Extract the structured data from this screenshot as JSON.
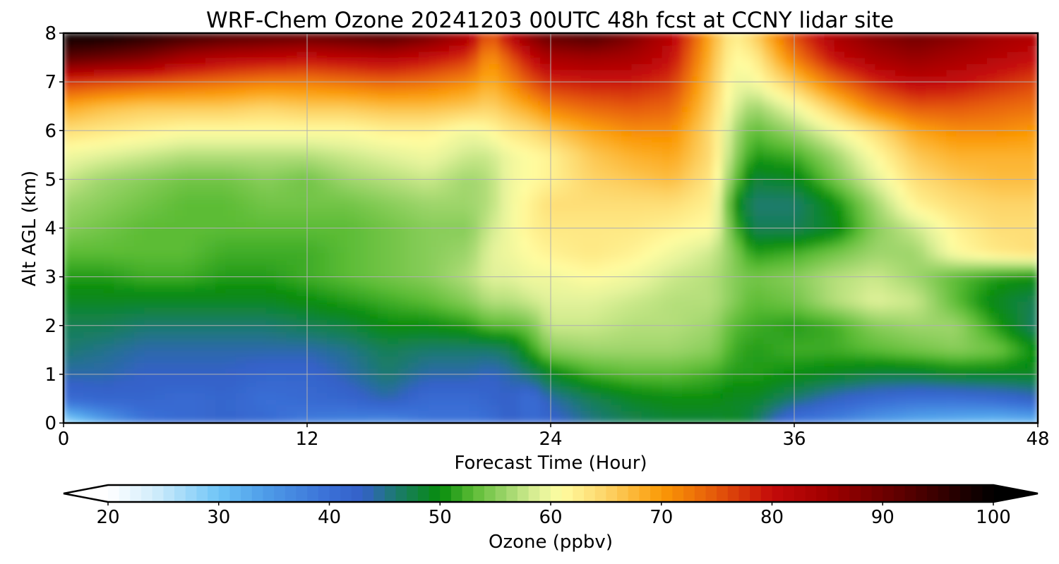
{
  "chart_data": {
    "type": "heatmap",
    "title": "WRF-Chem Ozone  20241203 00UTC 48h fcst at CCNY lidar site",
    "xlabel": "Forecast Time (Hour)",
    "ylabel": "Alt AGL (km)",
    "xlim": [
      0,
      48
    ],
    "ylim": [
      0,
      8
    ],
    "xticks": [
      "0",
      "12",
      "24",
      "36",
      "48"
    ],
    "yticks": [
      "0",
      "1",
      "2",
      "3",
      "4",
      "5",
      "6",
      "7",
      "8"
    ],
    "grid": true,
    "colorbar": {
      "label": "Ozone  (ppbv)",
      "orientation": "horizontal",
      "placement": "bottom",
      "range": [
        20,
        100
      ],
      "ticks": [
        "20",
        "30",
        "40",
        "50",
        "60",
        "70",
        "80",
        "90",
        "100"
      ],
      "extend": "both",
      "colors": [
        {
          "v": 20,
          "c": "#ffffff"
        },
        {
          "v": 24,
          "c": "#d4eefb"
        },
        {
          "v": 30,
          "c": "#6ec5f7"
        },
        {
          "v": 34,
          "c": "#4f9ee9"
        },
        {
          "v": 40,
          "c": "#3a6fd6"
        },
        {
          "v": 43,
          "c": "#3461c8"
        },
        {
          "v": 46,
          "c": "#1c7a6e"
        },
        {
          "v": 50,
          "c": "#068c0c"
        },
        {
          "v": 53,
          "c": "#5cbc35"
        },
        {
          "v": 56,
          "c": "#9ed56b"
        },
        {
          "v": 59,
          "c": "#e2f29a"
        },
        {
          "v": 61,
          "c": "#fffca0"
        },
        {
          "v": 65,
          "c": "#fdd468"
        },
        {
          "v": 70,
          "c": "#fb9a06"
        },
        {
          "v": 75,
          "c": "#e4570a"
        },
        {
          "v": 80,
          "c": "#c40a0a"
        },
        {
          "v": 85,
          "c": "#a00000"
        },
        {
          "v": 92,
          "c": "#5a0000"
        },
        {
          "v": 100,
          "c": "#000000"
        }
      ]
    },
    "x_hours": [
      0,
      2,
      4,
      6,
      8,
      10,
      12,
      14,
      16,
      18,
      20,
      21,
      22,
      23,
      24,
      26,
      28,
      30,
      32,
      33,
      34,
      36,
      38,
      40,
      42,
      44,
      46,
      48
    ],
    "y_km": [
      0,
      0.5,
      1,
      1.5,
      2,
      2.5,
      3,
      3.5,
      4,
      4.5,
      5,
      5.5,
      6,
      6.5,
      7,
      7.5,
      8
    ],
    "ozone_ppbv": [
      [
        26,
        33,
        39,
        41,
        42,
        41,
        38,
        37,
        36,
        39,
        39,
        40,
        43,
        41,
        42,
        45,
        47,
        48,
        48,
        49,
        47,
        39,
        37,
        34,
        32,
        31,
        30,
        31
      ],
      [
        41,
        42,
        42,
        41,
        42,
        40,
        41,
        42,
        44,
        41,
        41,
        42,
        43,
        40,
        44,
        47,
        49,
        50,
        50,
        49,
        49,
        46,
        43,
        41,
        40,
        40,
        41,
        43
      ],
      [
        44,
        44,
        43,
        43,
        43,
        42,
        42,
        44,
        46,
        44,
        44,
        43,
        44,
        46,
        49,
        52,
        53,
        53,
        52,
        51,
        51,
        50,
        49,
        48,
        48,
        49,
        49,
        49
      ],
      [
        46,
        45,
        44,
        44,
        44,
        44,
        44,
        45,
        47,
        46,
        46,
        46,
        47,
        51,
        55,
        56,
        56,
        56,
        55,
        52,
        51,
        52,
        52,
        53,
        54,
        55,
        54,
        50
      ],
      [
        47,
        47,
        46,
        46,
        46,
        46,
        47,
        48,
        50,
        50,
        51,
        53,
        53,
        54,
        58,
        58,
        57,
        57,
        56,
        53,
        52,
        51,
        52,
        55,
        56,
        56,
        51,
        46
      ],
      [
        49,
        49,
        49,
        49,
        49,
        49,
        50,
        51,
        52,
        53,
        55,
        57,
        57,
        58,
        59,
        59,
        58,
        57,
        57,
        55,
        53,
        54,
        57,
        59,
        58,
        53,
        49,
        47
      ],
      [
        51,
        51,
        52,
        52,
        51,
        51,
        52,
        53,
        54,
        55,
        57,
        59,
        59,
        60,
        60,
        61,
        60,
        58,
        57,
        55,
        54,
        55,
        57,
        58,
        56,
        53,
        51,
        50
      ],
      [
        53,
        53,
        53,
        53,
        52,
        52,
        52,
        53,
        54,
        55,
        56,
        59,
        60,
        61,
        62,
        63,
        62,
        60,
        58,
        55,
        51,
        52,
        54,
        56,
        56,
        61,
        63,
        64
      ],
      [
        55,
        54,
        53,
        53,
        53,
        53,
        53,
        53,
        54,
        55,
        55,
        58,
        60,
        62,
        63,
        63,
        63,
        62,
        61,
        53,
        47,
        47,
        49,
        55,
        58,
        62,
        64,
        64
      ],
      [
        56,
        55,
        54,
        53,
        53,
        54,
        54,
        54,
        55,
        56,
        56,
        57,
        60,
        62,
        64,
        64,
        64,
        64,
        62,
        51,
        46,
        46,
        50,
        56,
        62,
        64,
        65,
        65
      ],
      [
        58,
        56,
        55,
        54,
        54,
        55,
        54,
        56,
        57,
        58,
        56,
        57,
        60,
        61,
        62,
        65,
        66,
        67,
        63,
        54,
        48,
        49,
        54,
        59,
        64,
        66,
        67,
        67
      ],
      [
        60,
        59,
        58,
        57,
        57,
        57,
        57,
        58,
        59,
        60,
        58,
        58,
        60,
        61,
        62,
        66,
        68,
        69,
        64,
        56,
        51,
        52,
        56,
        61,
        66,
        68,
        68,
        68
      ],
      [
        64,
        63,
        62,
        61,
        61,
        61,
        61,
        61,
        62,
        62,
        60,
        61,
        63,
        64,
        66,
        69,
        71,
        71,
        64,
        57,
        53,
        56,
        60,
        64,
        69,
        71,
        71,
        70
      ],
      [
        69,
        67,
        66,
        66,
        66,
        65,
        66,
        66,
        67,
        67,
        66,
        65,
        67,
        69,
        72,
        74,
        75,
        74,
        65,
        59,
        56,
        60,
        66,
        72,
        75,
        75,
        74,
        73
      ],
      [
        77,
        76,
        75,
        74,
        73,
        72,
        72,
        73,
        74,
        73,
        71,
        68,
        71,
        75,
        78,
        79,
        79,
        77,
        66,
        60,
        60,
        66,
        73,
        78,
        81,
        80,
        78,
        76
      ],
      [
        92,
        90,
        88,
        84,
        82,
        81,
        80,
        81,
        82,
        80,
        77,
        70,
        75,
        80,
        84,
        85,
        84,
        80,
        67,
        61,
        62,
        72,
        80,
        84,
        86,
        84,
        82,
        80
      ],
      [
        100,
        100,
        98,
        96,
        94,
        93,
        92,
        93,
        94,
        90,
        84,
        74,
        82,
        88,
        92,
        94,
        89,
        82,
        68,
        62,
        65,
        76,
        84,
        88,
        90,
        88,
        85,
        83
      ]
    ]
  }
}
